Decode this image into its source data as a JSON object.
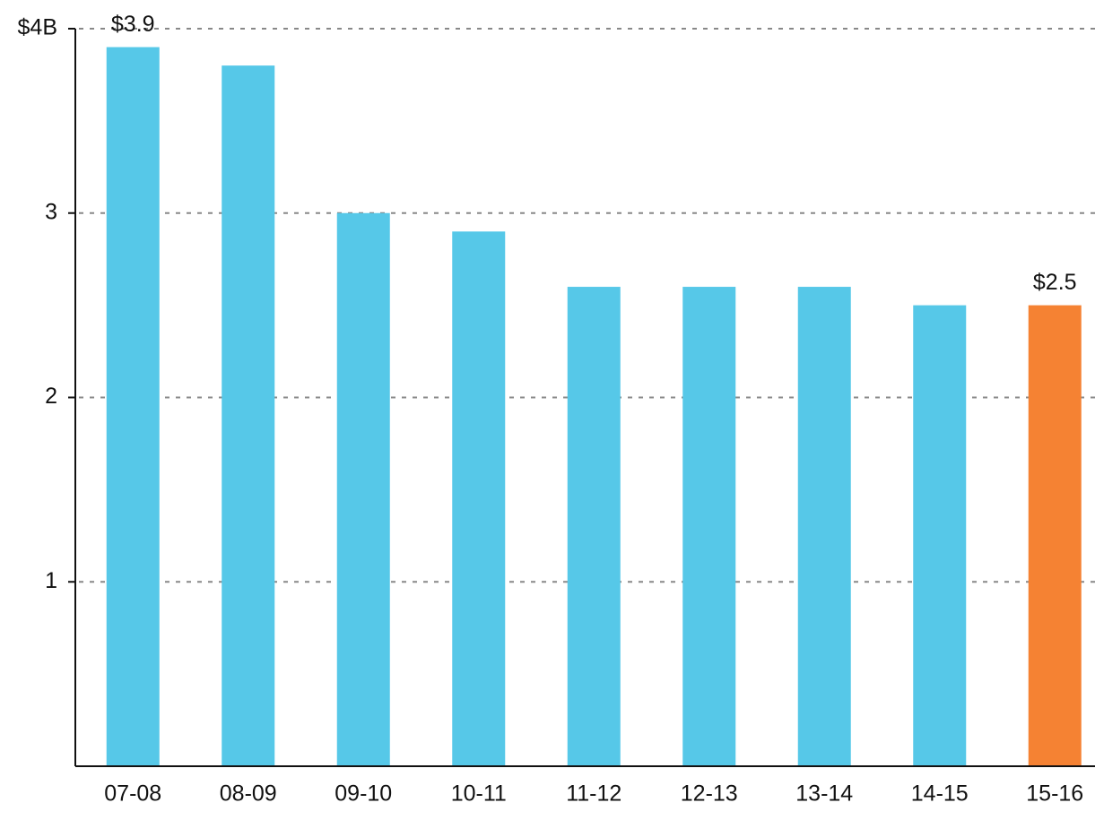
{
  "chart_data": {
    "type": "bar",
    "categories": [
      "07-08",
      "08-09",
      "09-10",
      "10-11",
      "11-12",
      "12-13",
      "13-14",
      "14-15",
      "15-16"
    ],
    "values": [
      3.9,
      3.8,
      3.0,
      2.9,
      2.6,
      2.6,
      2.6,
      2.5,
      2.5
    ],
    "value_labels": [
      "$3.9",
      null,
      null,
      null,
      null,
      null,
      null,
      null,
      "$2.5"
    ],
    "colors": [
      "#56c8e8",
      "#56c8e8",
      "#56c8e8",
      "#56c8e8",
      "#56c8e8",
      "#56c8e8",
      "#56c8e8",
      "#56c8e8",
      "#f58233"
    ],
    "ylim": [
      0,
      4
    ],
    "yticks": [
      1,
      2,
      3,
      {
        "value": 4,
        "label": "$4B"
      }
    ],
    "grid": true
  }
}
